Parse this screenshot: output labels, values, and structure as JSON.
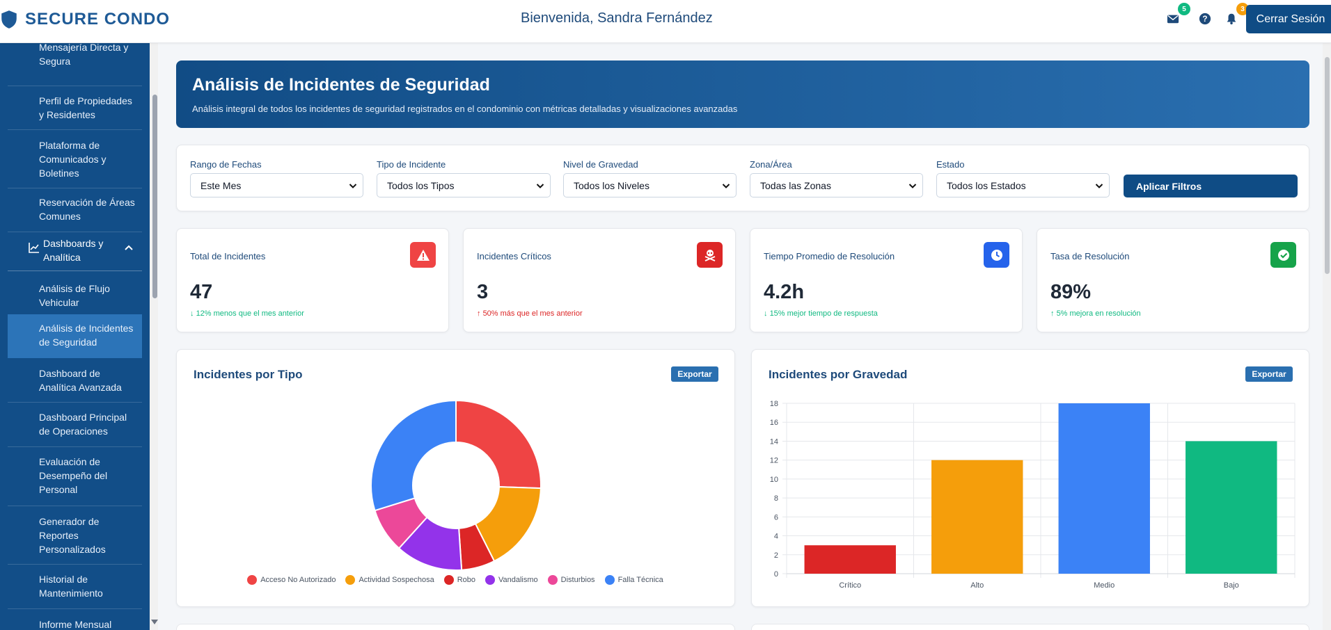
{
  "header": {
    "brand": "SECURE CONDO",
    "welcome": "Bienvenida, Sandra Fernández",
    "messages_badge": "5",
    "notifications_badge": "3",
    "logout_label": "Cerrar Sesión"
  },
  "sidebar": {
    "items_before": [
      {
        "label": "Mensajería Directa y Segura"
      },
      {
        "label": "Perfil de Propiedades y Residentes"
      },
      {
        "label": "Plataforma de Comunicados y Boletines"
      },
      {
        "label": "Reservación de Áreas Comunes"
      }
    ],
    "section": {
      "label": "Dashboards y Analítica",
      "icon": "chart-line-icon"
    },
    "items_after": [
      {
        "label": "Análisis de Flujo Vehicular"
      },
      {
        "label": "Análisis de Incidentes de Seguridad",
        "active": true
      },
      {
        "label": "Dashboard de Analítica Avanzada"
      },
      {
        "label": "Dashboard Principal de Operaciones"
      },
      {
        "label": "Evaluación de Desempeño del Personal"
      },
      {
        "label": "Generador de Reportes Personalizados"
      },
      {
        "label": "Historial de Mantenimiento"
      },
      {
        "label": "Informe Mensual"
      }
    ]
  },
  "banner": {
    "title": "Análisis de Incidentes de Seguridad",
    "subtitle": "Análisis integral de todos los incidentes de seguridad registrados en el condominio con métricas detalladas y visualizaciones avanzadas"
  },
  "filters": {
    "fields": [
      {
        "label": "Rango de Fechas",
        "value": "Este Mes"
      },
      {
        "label": "Tipo de Incidente",
        "value": "Todos los Tipos"
      },
      {
        "label": "Nivel de Gravedad",
        "value": "Todos los Niveles"
      },
      {
        "label": "Zona/Área",
        "value": "Todas las Zonas"
      },
      {
        "label": "Estado",
        "value": "Todos los Estados"
      }
    ],
    "apply_label": "Aplicar Filtros"
  },
  "kpis": [
    {
      "title": "Total de Incidentes",
      "value": "47",
      "trend": "12% menos que el mes anterior",
      "trend_dir": "down",
      "trend_color": "#10b981",
      "icon": "warning-icon",
      "icon_bg": "#ef4444"
    },
    {
      "title": "Incidentes Críticos",
      "value": "3",
      "trend": "50% más que el mes anterior",
      "trend_dir": "up",
      "trend_color": "#dc2626",
      "icon": "skull-crossbones-icon",
      "icon_bg": "#dc2626"
    },
    {
      "title": "Tiempo Promedio de Resolución",
      "value": "4.2h",
      "trend": "15% mejor tiempo de respuesta",
      "trend_dir": "down",
      "trend_color": "#10b981",
      "icon": "clock-icon",
      "icon_bg": "#2563eb"
    },
    {
      "title": "Tasa de Resolución",
      "value": "89%",
      "trend": "5% mejora en resolución",
      "trend_dir": "up",
      "trend_color": "#10b981",
      "icon": "check-circle-icon",
      "icon_bg": "#16a34a"
    }
  ],
  "export_label": "Exportar",
  "chart_data": [
    {
      "type": "pie",
      "title": "Incidentes por Tipo",
      "donut": true,
      "legend": "bottom",
      "categories": [
        "Acceso No Autorizado",
        "Actividad Sospechosa",
        "Robo",
        "Vandalismo",
        "Disturbios",
        "Falla Técnica"
      ],
      "values": [
        12,
        8,
        3,
        6,
        4,
        14
      ],
      "colors": [
        "#ef4444",
        "#f59e0b",
        "#dc2626",
        "#9333ea",
        "#ec4899",
        "#3b82f6"
      ]
    },
    {
      "type": "bar",
      "title": "Incidentes por Gravedad",
      "categories": [
        "Crítico",
        "Alto",
        "Medio",
        "Bajo"
      ],
      "values": [
        3,
        12,
        18,
        14
      ],
      "colors": [
        "#dc2626",
        "#f59e0b",
        "#3b82f6",
        "#10b981"
      ],
      "ylim": [
        0,
        18
      ],
      "yticks": [
        0,
        2,
        4,
        6,
        8,
        10,
        12,
        14,
        16,
        18
      ],
      "grid": true,
      "legend": "none"
    }
  ]
}
